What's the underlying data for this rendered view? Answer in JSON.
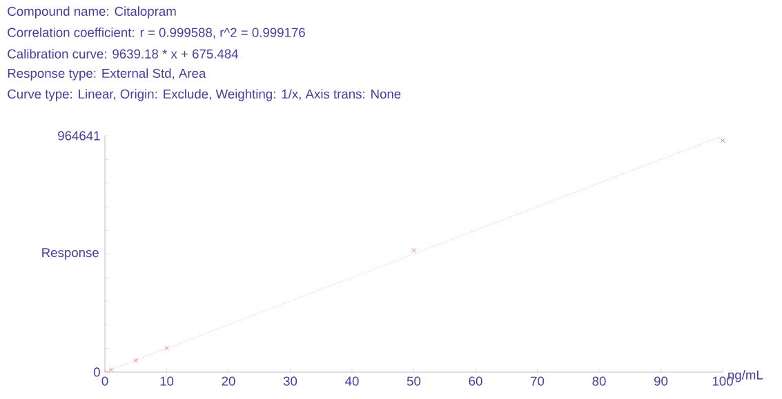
{
  "chart_data": {
    "type": "scatter",
    "title": "Compound name: Citalopram",
    "annotations": [
      "Correlation coefficient: r = 0.999588, r^2 = 0.999176",
      "Calibration curve: 9639.18 * x + 675.484",
      "Response type: External Std, Area",
      "Curve type: Linear, Origin: Exclude, Weighting: 1/x, Axis trans: None"
    ],
    "xlabel": "ng/mL",
    "ylabel": "Response",
    "xlim": [
      0,
      100
    ],
    "ylim": [
      0,
      964641
    ],
    "xticks": [
      0,
      10,
      20,
      30,
      40,
      50,
      60,
      70,
      80,
      90,
      100
    ],
    "yticks": [
      0,
      {
        "value": 96464.1,
        "label": null
      },
      {
        "value": 192928.2,
        "label": null
      },
      {
        "value": 289392.3,
        "label": null
      },
      {
        "value": 385856.4,
        "label": null
      },
      {
        "value": 482320.5,
        "label": null
      },
      {
        "value": 578784.6,
        "label": null
      },
      {
        "value": 675248.7,
        "label": null
      },
      {
        "value": 771712.8,
        "label": null
      },
      {
        "value": 868176.9,
        "label": null
      },
      964641
    ],
    "series": [
      {
        "color": "#e8605a",
        "marker": "cross",
        "x": [
          1,
          5,
          10,
          50,
          100
        ],
        "values": [
          10000,
          48000,
          98000,
          497000,
          945000
        ]
      },
      {
        "type": "line",
        "color": "#f07070",
        "line_style": "dotted",
        "marker": "none",
        "x": [
          0,
          100
        ],
        "values": [
          1000,
          964000
        ]
      }
    ]
  }
}
